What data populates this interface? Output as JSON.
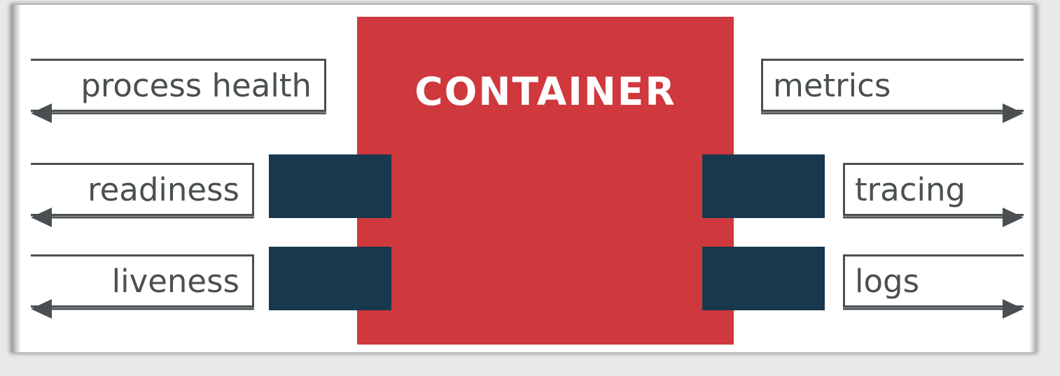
{
  "diagram": {
    "title": "CONTAINER",
    "left_labels": [
      "process health",
      "readiness",
      "liveness"
    ],
    "right_labels": [
      "metrics",
      "tracing",
      "logs"
    ],
    "colors": {
      "container": "#cf383d",
      "port": "#17384d",
      "line": "#4a4f51",
      "background": "#ffffff"
    }
  }
}
